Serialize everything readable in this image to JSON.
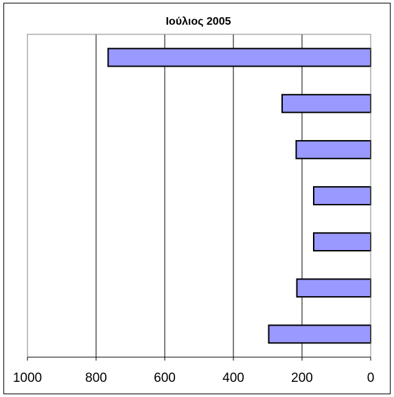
{
  "chart_data": {
    "type": "bar",
    "orientation": "horizontal",
    "x_axis_reversed": true,
    "title": "Ιούλιος  2005",
    "xlim": [
      0,
      1000
    ],
    "xticks": [
      1000,
      800,
      600,
      400,
      200,
      0
    ],
    "values": [
      765,
      258,
      217,
      166,
      166,
      215,
      297
    ],
    "grid": "vertical",
    "legend": "none",
    "bar_color": "#9999ff",
    "bar_edge_color": "#000000",
    "gridline_color": "#000000",
    "plot_border_color": "#808080"
  }
}
